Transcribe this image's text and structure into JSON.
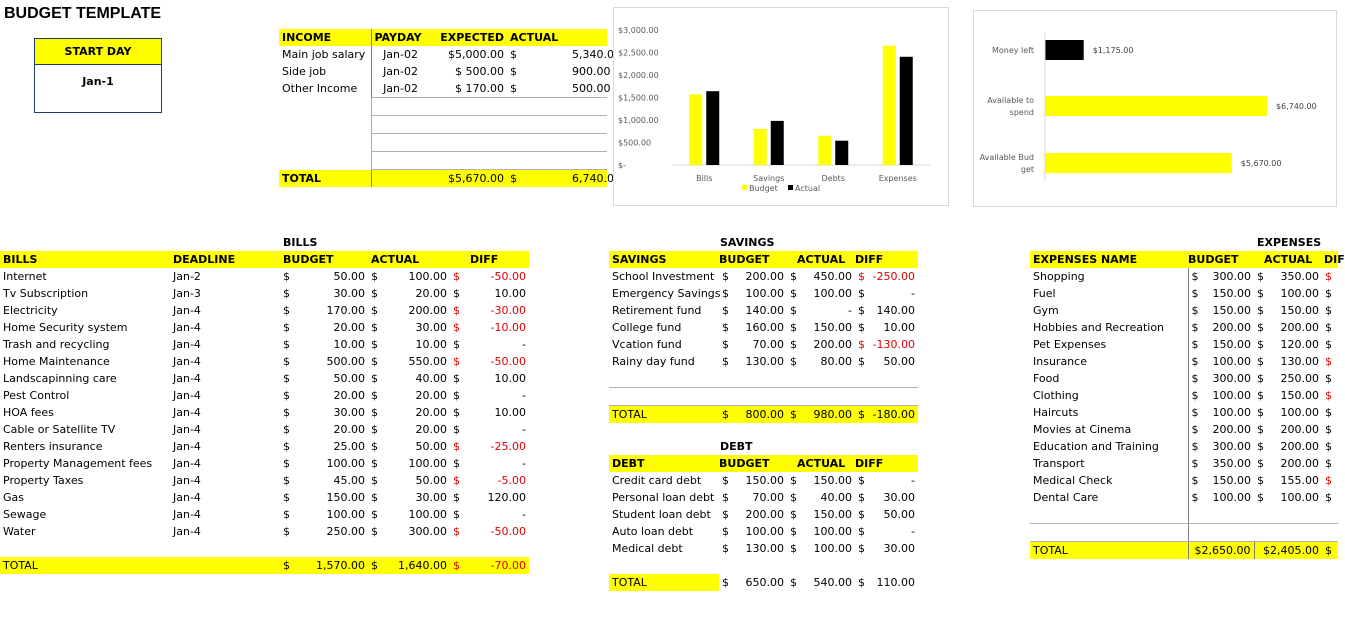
{
  "title": "BUDGET TEMPLATE",
  "start": {
    "label": "START DAY",
    "value": "Jan-1"
  },
  "income": {
    "headers": [
      "INCOME",
      "PAYDAY",
      "EXPECTED",
      "ACTUAL"
    ],
    "rows": [
      {
        "name": "Main job salary",
        "payday": "Jan-02",
        "expected": "$5,000.00",
        "actual_cur": "$",
        "actual": "5,340.00"
      },
      {
        "name": "Side job",
        "payday": "Jan-02",
        "expected": "$  500.00",
        "actual_cur": "$",
        "actual": "900.00"
      },
      {
        "name": "Other Income",
        "payday": "Jan-02",
        "expected": "$  170.00",
        "actual_cur": "$",
        "actual": "500.00"
      }
    ],
    "total": {
      "label": "TOTAL",
      "expected": "$5,670.00",
      "actual_cur": "$",
      "actual": "6,740.00"
    }
  },
  "chart_data": [
    {
      "type": "bar",
      "categories": [
        "Bills",
        "Savings",
        "Debts",
        "Expenses"
      ],
      "series": [
        {
          "name": "Budget",
          "color": "#ffff00",
          "values": [
            1570,
            800,
            650,
            2650
          ]
        },
        {
          "name": "Actual",
          "color": "#000000",
          "values": [
            1640,
            980,
            540,
            2405
          ]
        }
      ],
      "ylim": [
        0,
        3000
      ],
      "yticks": [
        "$3,000.00",
        "$2,500.00",
        "$2,000.00",
        "$1,500.00",
        "$1,000.00",
        "$500.00",
        "$-"
      ],
      "legend": "bottom"
    },
    {
      "type": "bar",
      "orientation": "horizontal",
      "categories": [
        "Money left",
        "Available to spend",
        "Available Budget"
      ],
      "category_lines": [
        [
          "Money left"
        ],
        [
          "Available to",
          "spend"
        ],
        [
          "Available Bud",
          "get"
        ]
      ],
      "values": [
        1175,
        6740,
        5670
      ],
      "colors": [
        "#000000",
        "#ffff00",
        "#ffff00"
      ],
      "data_labels": [
        "$1,175.00",
        "$6,740.00",
        "$5,670.00"
      ],
      "xlim": [
        0,
        6740
      ]
    }
  ],
  "bills": {
    "section_title": "BILLS",
    "headers": [
      "BILLS",
      "DEADLINE",
      "BUDGET",
      "ACTUAL",
      "DIFF"
    ],
    "rows": [
      {
        "name": "Internet",
        "deadline": "Jan-2",
        "budget": "50.00",
        "actual": "100.00",
        "diff": "-50.00",
        "neg": true
      },
      {
        "name": "Tv Subscription",
        "deadline": "Jan-3",
        "budget": "30.00",
        "actual": "20.00",
        "diff": "10.00",
        "neg": false
      },
      {
        "name": "Electricity",
        "deadline": "Jan-4",
        "budget": "170.00",
        "actual": "200.00",
        "diff": "-30.00",
        "neg": true
      },
      {
        "name": "Home Security system",
        "deadline": "Jan-4",
        "budget": "20.00",
        "actual": "30.00",
        "diff": "-10.00",
        "neg": true
      },
      {
        "name": "Trash and recycling",
        "deadline": "Jan-4",
        "budget": "10.00",
        "actual": "10.00",
        "diff": "-",
        "neg": false
      },
      {
        "name": "Home Maintenance",
        "deadline": "Jan-4",
        "budget": "500.00",
        "actual": "550.00",
        "diff": "-50.00",
        "neg": true
      },
      {
        "name": "Landscapinning care",
        "deadline": "Jan-4",
        "budget": "50.00",
        "actual": "40.00",
        "diff": "10.00",
        "neg": false
      },
      {
        "name": "Pest Control",
        "deadline": "Jan-4",
        "budget": "20.00",
        "actual": "20.00",
        "diff": "-",
        "neg": false
      },
      {
        "name": "HOA fees",
        "deadline": "Jan-4",
        "budget": "30.00",
        "actual": "20.00",
        "diff": "10.00",
        "neg": false
      },
      {
        "name": "Cable or Satellite TV",
        "deadline": "Jan-4",
        "budget": "20.00",
        "actual": "20.00",
        "diff": "-",
        "neg": false
      },
      {
        "name": "Renters insurance",
        "deadline": "Jan-4",
        "budget": "25.00",
        "actual": "50.00",
        "diff": "-25.00",
        "neg": true
      },
      {
        "name": "Property Management fees",
        "deadline": "Jan-4",
        "budget": "100.00",
        "actual": "100.00",
        "diff": "-",
        "neg": false
      },
      {
        "name": "Property Taxes",
        "deadline": "Jan-4",
        "budget": "45.00",
        "actual": "50.00",
        "diff": "-5.00",
        "neg": true
      },
      {
        "name": "Gas",
        "deadline": "Jan-4",
        "budget": "150.00",
        "actual": "30.00",
        "diff": "120.00",
        "neg": false
      },
      {
        "name": "Sewage",
        "deadline": "Jan-4",
        "budget": "100.00",
        "actual": "100.00",
        "diff": "-",
        "neg": false
      },
      {
        "name": "Water",
        "deadline": "Jan-4",
        "budget": "250.00",
        "actual": "300.00",
        "diff": "-50.00",
        "neg": true
      }
    ],
    "total": {
      "label": "TOTAL",
      "budget": "1,570.00",
      "actual": "1,640.00",
      "diff": "-70.00"
    }
  },
  "savings": {
    "section_title": "SAVINGS",
    "headers": [
      "SAVINGS",
      "BUDGET",
      "ACTUAL",
      "DIFF"
    ],
    "rows": [
      {
        "name": "School Investment",
        "budget": "200.00",
        "actual": "450.00",
        "diff": "-250.00",
        "neg": true
      },
      {
        "name": "Emergency Savings",
        "budget": "100.00",
        "actual": "100.00",
        "diff": "-",
        "neg": false
      },
      {
        "name": "Retirement fund",
        "budget": "140.00",
        "actual": "-",
        "diff": "140.00",
        "neg": false
      },
      {
        "name": "College fund",
        "budget": "160.00",
        "actual": "150.00",
        "diff": "10.00",
        "neg": false
      },
      {
        "name": "Vcation fund",
        "budget": "70.00",
        "actual": "200.00",
        "diff": "-130.00",
        "neg": true
      },
      {
        "name": "Rainy day fund",
        "budget": "130.00",
        "actual": "80.00",
        "diff": "50.00",
        "neg": false
      }
    ],
    "total": {
      "label": "TOTAL",
      "budget": "800.00",
      "actual": "980.00",
      "diff": "-180.00"
    }
  },
  "debt": {
    "section_title": "DEBT",
    "headers": [
      "DEBT",
      "BUDGET",
      "ACTUAL",
      "DIFF"
    ],
    "rows": [
      {
        "name": "Credit card debt",
        "budget": "150.00",
        "actual": "150.00",
        "diff": "-"
      },
      {
        "name": "Personal loan debt",
        "budget": "70.00",
        "actual": "40.00",
        "diff": "30.00"
      },
      {
        "name": "Student loan debt",
        "budget": "200.00",
        "actual": "150.00",
        "diff": "50.00"
      },
      {
        "name": "Auto loan debt",
        "budget": "100.00",
        "actual": "100.00",
        "diff": "-"
      },
      {
        "name": "Medical debt",
        "budget": "130.00",
        "actual": "100.00",
        "diff": "30.00"
      }
    ],
    "total": {
      "label": "TOTAL",
      "budget": "650.00",
      "actual": "540.00",
      "diff": "110.00"
    }
  },
  "expenses": {
    "section_title": "EXPENSES",
    "headers": [
      "EXPENSES NAME",
      "BUDGET",
      "ACTUAL",
      "DIF"
    ],
    "rows": [
      {
        "name": "Shopping",
        "budget": "300.00",
        "actual": "350.00",
        "neg": true
      },
      {
        "name": "Fuel",
        "budget": "150.00",
        "actual": "100.00",
        "neg": false
      },
      {
        "name": "Gym",
        "budget": "150.00",
        "actual": "150.00",
        "neg": false
      },
      {
        "name": "Hobbies and Recreation",
        "budget": "200.00",
        "actual": "200.00",
        "neg": false
      },
      {
        "name": "Pet Expenses",
        "budget": "150.00",
        "actual": "120.00",
        "neg": false
      },
      {
        "name": "Insurance",
        "budget": "100.00",
        "actual": "130.00",
        "neg": true
      },
      {
        "name": "Food",
        "budget": "300.00",
        "actual": "250.00",
        "neg": false
      },
      {
        "name": "Clothing",
        "budget": "100.00",
        "actual": "150.00",
        "neg": true
      },
      {
        "name": "Haircuts",
        "budget": "100.00",
        "actual": "100.00",
        "neg": false
      },
      {
        "name": "Movies at Cinema",
        "budget": "200.00",
        "actual": "200.00",
        "neg": false
      },
      {
        "name": "Education and Training",
        "budget": "300.00",
        "actual": "200.00",
        "neg": false
      },
      {
        "name": "Transport",
        "budget": "350.00",
        "actual": "200.00",
        "neg": false
      },
      {
        "name": "Medical Check",
        "budget": "150.00",
        "actual": "155.00",
        "neg": true
      },
      {
        "name": "Dental Care",
        "budget": "100.00",
        "actual": "100.00",
        "neg": false
      }
    ],
    "total": {
      "label": "TOTAL",
      "budget": "$2,650.00",
      "actual": "$2,405.00"
    }
  },
  "currency": "$",
  "colors": {
    "highlight": "#ffff00",
    "negative": "#e00000",
    "box_border": "#1f3a75"
  }
}
